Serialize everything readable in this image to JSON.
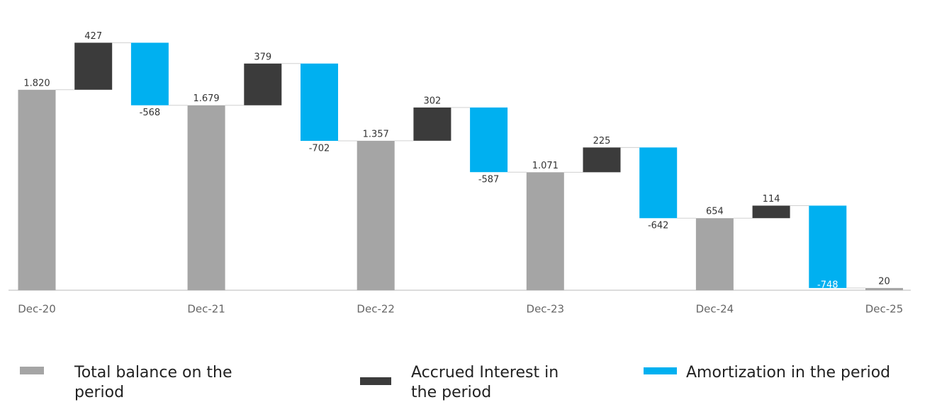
{
  "chart_data": {
    "type": "waterfall",
    "categories": [
      "Dec-20",
      null,
      null,
      "Dec-21",
      null,
      null,
      "Dec-22",
      null,
      null,
      "Dec-23",
      null,
      null,
      "Dec-24",
      null,
      null,
      "Dec-25"
    ],
    "series": [
      {
        "name": "Total balance on the period",
        "color": "#a5a5a5",
        "values": [
          1820,
          null,
          null,
          1679,
          null,
          null,
          1357,
          null,
          null,
          1071,
          null,
          null,
          654,
          null,
          null,
          20
        ],
        "value_labels": [
          "1.820",
          null,
          null,
          "1.679",
          null,
          null,
          "1.357",
          null,
          null,
          "1.071",
          null,
          null,
          "654",
          null,
          null,
          "20"
        ]
      },
      {
        "name": "Accrued Interest in the period",
        "color": "#3b3b3b",
        "values": [
          null,
          427,
          null,
          null,
          379,
          null,
          null,
          302,
          null,
          null,
          225,
          null,
          null,
          114,
          null,
          null
        ]
      },
      {
        "name": "Amortization in the period",
        "color": "#00b0f0",
        "values": [
          null,
          null,
          -568,
          null,
          null,
          -702,
          null,
          null,
          -587,
          null,
          null,
          -642,
          null,
          null,
          -748,
          null
        ]
      }
    ],
    "ylim": [
      0,
      2500
    ]
  }
}
